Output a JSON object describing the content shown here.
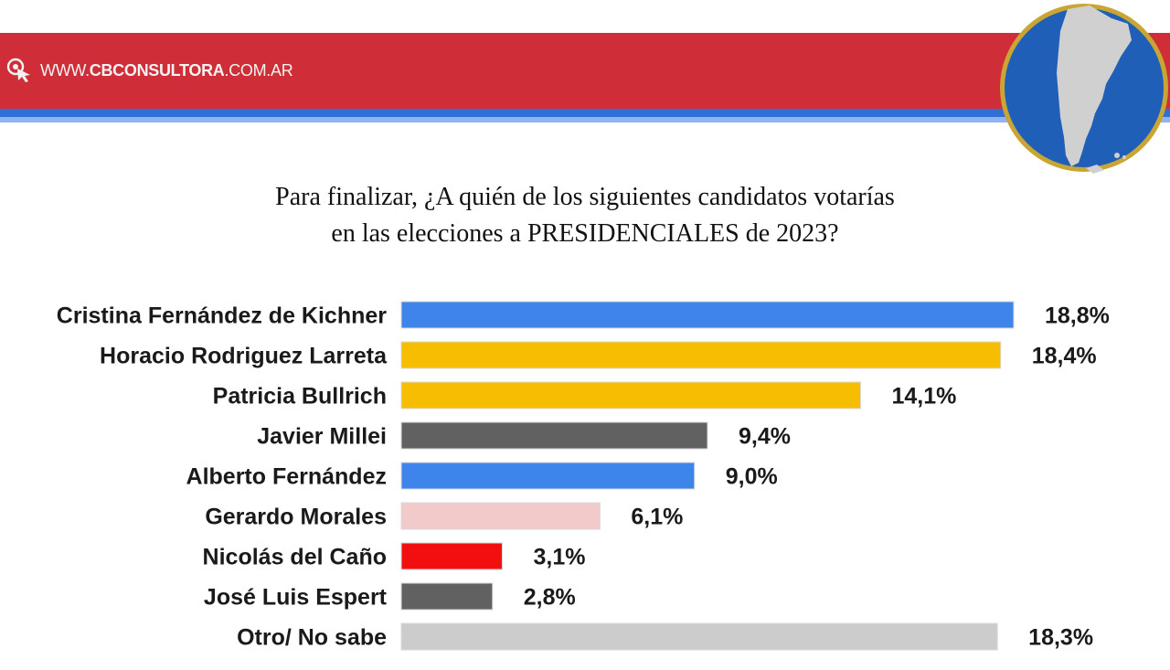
{
  "header": {
    "site_prefix": "WWW.",
    "site_brand": "CBCONSULTORA",
    "site_suffix": ".COM.AR",
    "logo_icon": "cursor-click-icon",
    "badge_icon": "argentina-map-icon",
    "colors": {
      "band": "#cf2e38",
      "stripe": "#2f6fd6",
      "badge_fill": "#1f5fb8",
      "badge_ring": "#c9a634"
    }
  },
  "chart_data": {
    "type": "bar",
    "orientation": "horizontal",
    "title_line1": "Para finalizar, ¿A quién de los siguientes candidatos votarías",
    "title_line2": "en las elecciones a PRESIDENCIALES  de 2023?",
    "xlabel": "",
    "ylabel": "",
    "xlim": [
      0,
      18.8
    ],
    "grid": false,
    "legend": "none",
    "categories": [
      "Cristina Fernández de Kichner",
      "Horacio Rodriguez Larreta",
      "Patricia Bullrich",
      "Javier Millei",
      "Alberto Fernández",
      "Gerardo Morales",
      "Nicolás del Caño",
      "José Luis Espert",
      "Otro/ No sabe"
    ],
    "values": [
      18.8,
      18.4,
      14.1,
      9.4,
      9.0,
      6.1,
      3.1,
      2.8,
      18.3
    ],
    "value_labels": [
      "18,8%",
      "18,4%",
      "14,1%",
      "9,4%",
      "9,0%",
      "6,1%",
      "3,1%",
      "2,8%",
      "18,3%"
    ],
    "colors": [
      "#3f84ea",
      "#f7bd00",
      "#f7bd00",
      "#616161",
      "#3f84ea",
      "#f2caca",
      "#f30f0f",
      "#616161",
      "#cccccc"
    ]
  }
}
